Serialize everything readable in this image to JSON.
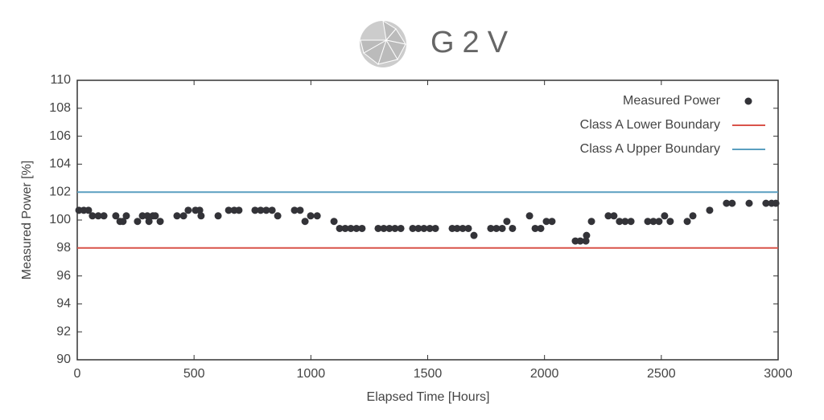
{
  "logo": {
    "text": "G2V"
  },
  "chart_data": {
    "type": "scatter",
    "xlabel": "Elapsed Time [Hours]",
    "ylabel": "Measured Power [%]",
    "xlim": [
      0,
      3000
    ],
    "xticks": [
      0,
      500,
      1000,
      1500,
      2000,
      2500,
      3000
    ],
    "ylim": [
      90,
      110
    ],
    "yticks": [
      90,
      92,
      94,
      96,
      98,
      100,
      102,
      104,
      106,
      108,
      110
    ],
    "grid": false,
    "legend": "upper right",
    "series": [
      {
        "name": "Measured Power",
        "color": "#333338",
        "x": [
          7,
          28,
          48,
          65,
          90,
          114,
          165,
          183,
          196,
          210,
          258,
          279,
          300,
          307,
          324,
          334,
          355,
          427,
          455,
          475,
          506,
          524,
          530,
          603,
          648,
          672,
          692,
          761,
          785,
          809,
          834,
          858,
          930,
          954,
          975,
          999,
          1027,
          1099,
          1123,
          1147,
          1171,
          1195,
          1219,
          1288,
          1312,
          1336,
          1360,
          1385,
          1436,
          1460,
          1484,
          1509,
          1533,
          1605,
          1626,
          1650,
          1674,
          1698,
          1770,
          1794,
          1819,
          1839,
          1863,
          1936,
          1960,
          1984,
          2008,
          2032,
          2132,
          2153,
          2177,
          2180,
          2201,
          2273,
          2297,
          2321,
          2345,
          2370,
          2442,
          2466,
          2490,
          2514,
          2538,
          2611,
          2635,
          2707,
          2779,
          2803,
          2876,
          2948,
          2972,
          2990
        ],
        "values": [
          100.7,
          100.7,
          100.7,
          100.3,
          100.3,
          100.3,
          100.3,
          99.9,
          99.9,
          100.3,
          99.9,
          100.3,
          100.3,
          99.9,
          100.3,
          100.3,
          99.9,
          100.3,
          100.3,
          100.7,
          100.7,
          100.7,
          100.3,
          100.3,
          100.7,
          100.7,
          100.7,
          100.7,
          100.7,
          100.7,
          100.7,
          100.3,
          100.7,
          100.7,
          99.9,
          100.3,
          100.3,
          99.9,
          99.4,
          99.4,
          99.4,
          99.4,
          99.4,
          99.4,
          99.4,
          99.4,
          99.4,
          99.4,
          99.4,
          99.4,
          99.4,
          99.4,
          99.4,
          99.4,
          99.4,
          99.4,
          99.4,
          98.9,
          99.4,
          99.4,
          99.4,
          99.9,
          99.4,
          100.3,
          99.4,
          99.4,
          99.9,
          99.9,
          98.5,
          98.5,
          98.5,
          98.9,
          99.9,
          100.3,
          100.3,
          99.9,
          99.9,
          99.9,
          99.9,
          99.9,
          99.9,
          100.3,
          99.9,
          99.9,
          100.3,
          100.7,
          101.2,
          101.2,
          101.2,
          101.2,
          101.2,
          101.2
        ]
      }
    ],
    "reference_lines": [
      {
        "name": "Class A Lower Boundary",
        "color": "#d9534a",
        "value": 98
      },
      {
        "name": "Class A Upper Boundary",
        "color": "#5a9fc0",
        "value": 102
      }
    ]
  }
}
